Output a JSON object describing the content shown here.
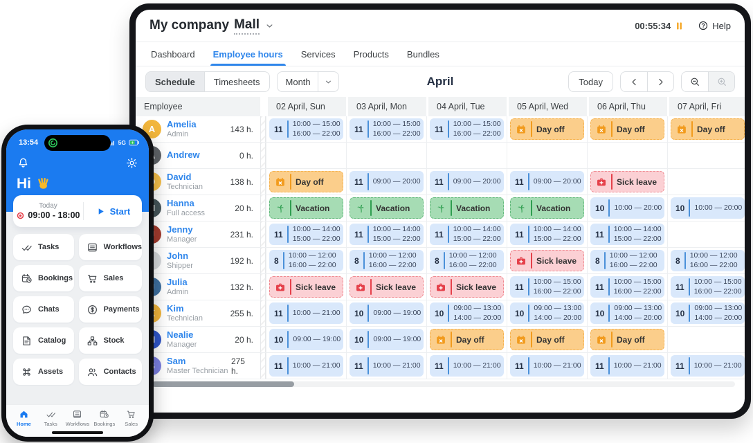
{
  "colors": {
    "accent_blue": "#2f86eb",
    "phone_blue": "#1b7bf0",
    "shift_bg": "#d9e8fb",
    "shift_line": "#4a90d9",
    "dayoff_bg": "#fbce8b",
    "dayoff_accent": "#f29b1d",
    "vacation_bg": "#a6dcb4",
    "vacation_accent": "#2f9e50",
    "sick_bg": "#fbd0d4",
    "sick_accent": "#e5404a",
    "pause_orange": "#f5a623"
  },
  "header": {
    "company": "My company",
    "location": "Mall",
    "timer": "00:55:34",
    "help": "Help"
  },
  "tabs": [
    {
      "label": "Dashboard",
      "active": false
    },
    {
      "label": "Employee hours",
      "active": true
    },
    {
      "label": "Services",
      "active": false
    },
    {
      "label": "Products",
      "active": false
    },
    {
      "label": "Bundles",
      "active": false
    }
  ],
  "toolbar": {
    "schedule": "Schedule",
    "timesheets": "Timesheets",
    "period": "Month",
    "title": "April",
    "today": "Today"
  },
  "schedule": {
    "employee_header": "Employee",
    "days": [
      "02 April, Sun",
      "03 April, Mon",
      "04 April, Tue",
      "05 April, Wed",
      "06 April, Thu",
      "07 April, Fri"
    ],
    "cell_labels": {
      "dayoff": "Day off",
      "vacation": "Vacation",
      "sick": "Sick leave"
    },
    "rows": [
      {
        "name": "Amelia",
        "role": "Admin",
        "hours": "143 h.",
        "initial": "A",
        "avatar_color": "#f2b63c",
        "cells": [
          {
            "type": "shift",
            "h": "11",
            "times": [
              "10:00 — 15:00",
              "16:00 — 22:00"
            ]
          },
          {
            "type": "shift",
            "h": "11",
            "times": [
              "10:00 — 15:00",
              "16:00 — 22:00"
            ]
          },
          {
            "type": "shift",
            "h": "11",
            "times": [
              "10:00 — 15:00",
              "16:00 — 22:00"
            ]
          },
          {
            "type": "dayoff"
          },
          {
            "type": "dayoff"
          },
          {
            "type": "dayoff"
          }
        ]
      },
      {
        "name": "Andrew",
        "role": "",
        "hours": "0 h.",
        "initial": "A",
        "avatar_color": "#5f6368",
        "cells": [
          {
            "type": "empty"
          },
          {
            "type": "empty"
          },
          {
            "type": "empty"
          },
          {
            "type": "empty"
          },
          {
            "type": "empty"
          },
          {
            "type": "empty"
          }
        ]
      },
      {
        "name": "David",
        "role": "Technician",
        "hours": "138 h.",
        "initial": "D",
        "avatar_color": "#f7c04a",
        "cells": [
          {
            "type": "dayoff"
          },
          {
            "type": "shift",
            "h": "11",
            "times": [
              "09:00 — 20:00"
            ]
          },
          {
            "type": "shift",
            "h": "11",
            "times": [
              "09:00 — 20:00"
            ]
          },
          {
            "type": "shift",
            "h": "11",
            "times": [
              "09:00 — 20:00"
            ]
          },
          {
            "type": "sick"
          },
          {
            "type": "empty"
          }
        ]
      },
      {
        "name": "Hanna",
        "role": "Full access",
        "hours": "20 h.",
        "initial": "H",
        "avatar_color": "#46555a",
        "cells": [
          {
            "type": "vacation"
          },
          {
            "type": "vacation"
          },
          {
            "type": "vacation"
          },
          {
            "type": "vacation"
          },
          {
            "type": "shift",
            "h": "10",
            "times": [
              "10:00 — 20:00"
            ]
          },
          {
            "type": "shift",
            "h": "10",
            "times": [
              "10:00 — 20:00"
            ]
          }
        ]
      },
      {
        "name": "Jenny",
        "role": "Manager",
        "hours": "231 h.",
        "initial": "J",
        "avatar_color": "#a33b2e",
        "cells": [
          {
            "type": "shift",
            "h": "11",
            "times": [
              "10:00 — 14:00",
              "15:00 — 22:00"
            ]
          },
          {
            "type": "shift",
            "h": "11",
            "times": [
              "10:00 — 14:00",
              "15:00 — 22:00"
            ]
          },
          {
            "type": "shift",
            "h": "11",
            "times": [
              "10:00 — 14:00",
              "15:00 — 22:00"
            ]
          },
          {
            "type": "shift",
            "h": "11",
            "times": [
              "10:00 — 14:00",
              "15:00 — 22:00"
            ]
          },
          {
            "type": "shift",
            "h": "11",
            "times": [
              "10:00 — 14:00",
              "15:00 — 22:00"
            ]
          },
          {
            "type": "empty"
          }
        ]
      },
      {
        "name": "John",
        "role": "Shipper",
        "hours": "192 h.",
        "initial": "J",
        "avatar_color": "#d7dadd",
        "cells": [
          {
            "type": "shift",
            "h": "8",
            "times": [
              "10:00 — 12:00",
              "16:00 — 22:00"
            ]
          },
          {
            "type": "shift",
            "h": "8",
            "times": [
              "10:00 — 12:00",
              "16:00 — 22:00"
            ]
          },
          {
            "type": "shift",
            "h": "8",
            "times": [
              "10:00 — 12:00",
              "16:00 — 22:00"
            ]
          },
          {
            "type": "sick"
          },
          {
            "type": "shift",
            "h": "8",
            "times": [
              "10:00 — 12:00",
              "16:00 — 22:00"
            ]
          },
          {
            "type": "shift",
            "h": "8",
            "times": [
              "10:00 — 12:00",
              "16:00 — 22:00"
            ]
          }
        ]
      },
      {
        "name": "Julia",
        "role": "Admin",
        "hours": "132 h.",
        "initial": "J",
        "avatar_color": "#3e70a0",
        "cells": [
          {
            "type": "sick"
          },
          {
            "type": "sick"
          },
          {
            "type": "sick"
          },
          {
            "type": "shift",
            "h": "11",
            "times": [
              "10:00 — 15:00",
              "16:00 — 22:00"
            ]
          },
          {
            "type": "shift",
            "h": "11",
            "times": [
              "10:00 — 15:00",
              "16:00 — 22:00"
            ]
          },
          {
            "type": "shift",
            "h": "11",
            "times": [
              "10:00 — 15:00",
              "16:00 — 22:00"
            ]
          }
        ]
      },
      {
        "name": "Kim",
        "role": "Technician",
        "hours": "255 h.",
        "initial": "K",
        "avatar_color": "#f2b63c",
        "cells": [
          {
            "type": "shift",
            "h": "11",
            "times": [
              "10:00 — 21:00"
            ]
          },
          {
            "type": "shift",
            "h": "10",
            "times": [
              "09:00 — 19:00"
            ]
          },
          {
            "type": "shift",
            "h": "10",
            "times": [
              "09:00 — 13:00",
              "14:00 — 20:00"
            ]
          },
          {
            "type": "shift",
            "h": "10",
            "times": [
              "09:00 — 13:00",
              "14:00 — 20:00"
            ]
          },
          {
            "type": "shift",
            "h": "10",
            "times": [
              "09:00 — 13:00",
              "14:00 — 20:00"
            ]
          },
          {
            "type": "shift",
            "h": "10",
            "times": [
              "09:00 — 13:00",
              "14:00 — 20:00"
            ]
          }
        ]
      },
      {
        "name": "Nealie",
        "role": "Manager",
        "hours": "20 h.",
        "initial": "N",
        "avatar_color": "#2f55c9",
        "cells": [
          {
            "type": "shift",
            "h": "10",
            "times": [
              "09:00 — 19:00"
            ]
          },
          {
            "type": "shift",
            "h": "10",
            "times": [
              "09:00 — 19:00"
            ]
          },
          {
            "type": "dayoff"
          },
          {
            "type": "dayoff"
          },
          {
            "type": "dayoff"
          },
          {
            "type": "empty"
          }
        ]
      },
      {
        "name": "Sam",
        "role": "Master Technician",
        "hours": "275 h.",
        "initial": "S",
        "avatar_color": "#7b7fe0",
        "cells": [
          {
            "type": "shift",
            "h": "11",
            "times": [
              "10:00 — 21:00"
            ]
          },
          {
            "type": "shift",
            "h": "11",
            "times": [
              "10:00 — 21:00"
            ]
          },
          {
            "type": "shift",
            "h": "11",
            "times": [
              "10:00 — 21:00"
            ]
          },
          {
            "type": "shift",
            "h": "11",
            "times": [
              "10:00 — 21:00"
            ]
          },
          {
            "type": "shift",
            "h": "11",
            "times": [
              "10:00 — 21:00"
            ]
          },
          {
            "type": "shift",
            "h": "11",
            "times": [
              "10:00 — 21:00"
            ]
          }
        ]
      }
    ]
  },
  "phone": {
    "status_time": "13:54",
    "network": "5G",
    "greeting": "Hi",
    "card": {
      "label": "Today",
      "time": "09:00 - 18:00",
      "start": "Start"
    },
    "grid": [
      {
        "label": "Tasks",
        "icon": "tasks-icon"
      },
      {
        "label": "Workflows",
        "icon": "workflows-icon"
      },
      {
        "label": "Bookings",
        "icon": "bookings-icon"
      },
      {
        "label": "Sales",
        "icon": "sales-icon"
      },
      {
        "label": "Chats",
        "icon": "chats-icon"
      },
      {
        "label": "Payments",
        "icon": "payments-icon"
      },
      {
        "label": "Catalog",
        "icon": "catalog-icon"
      },
      {
        "label": "Stock",
        "icon": "stock-icon"
      },
      {
        "label": "Assets",
        "icon": "assets-icon"
      },
      {
        "label": "Contacts",
        "icon": "contacts-icon"
      }
    ],
    "nav": [
      {
        "label": "Home",
        "icon": "home-icon",
        "active": true
      },
      {
        "label": "Tasks",
        "icon": "tasks-icon",
        "active": false
      },
      {
        "label": "Workflows",
        "icon": "workflows-icon",
        "active": false
      },
      {
        "label": "Bookings",
        "icon": "bookings-icon",
        "active": false
      },
      {
        "label": "Sales",
        "icon": "sales-icon",
        "active": false
      }
    ]
  }
}
